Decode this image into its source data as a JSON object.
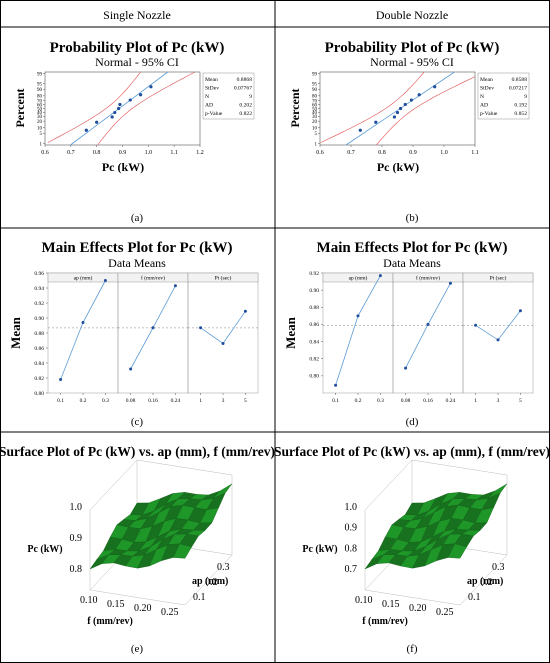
{
  "header": {
    "left": "Single Nozzle",
    "right": "Double Nozzle"
  },
  "panel_labels": [
    "(a)",
    "(b)",
    "(c)",
    "(d)",
    "(e)",
    "(f)"
  ],
  "chart_data": [
    {
      "panel": "(a)",
      "type": "scatter",
      "title": "Probability Plot of Pc (kW)",
      "subtitle": "Normal - 95% CI",
      "xlabel": "Pc (kW)",
      "ylabel": "Percent",
      "xlim": [
        0.6,
        1.2
      ],
      "x_ticks": [
        0.6,
        0.7,
        0.8,
        0.9,
        1.0,
        1.1,
        1.2
      ],
      "y_ticks": [
        1,
        5,
        10,
        20,
        30,
        40,
        50,
        60,
        70,
        80,
        90,
        95,
        99
      ],
      "stats": [
        {
          "label": "Mean",
          "value": "0.8868"
        },
        {
          "label": "StDev",
          "value": "0.07767"
        },
        {
          "label": "N",
          "value": "9"
        },
        {
          "label": "AD",
          "value": "0.202"
        },
        {
          "label": "p-Value",
          "value": "0.822"
        }
      ],
      "mean": 0.8868,
      "stdev": 0.07767,
      "points": [
        {
          "x": 0.76,
          "p": 7.4
        },
        {
          "x": 0.8,
          "p": 18.1
        },
        {
          "x": 0.86,
          "p": 28.7
        },
        {
          "x": 0.87,
          "p": 39.4
        },
        {
          "x": 0.885,
          "p": 50
        },
        {
          "x": 0.89,
          "p": 60.6
        },
        {
          "x": 0.93,
          "p": 71.3
        },
        {
          "x": 0.97,
          "p": 81.9
        },
        {
          "x": 1.01,
          "p": 92.6
        }
      ],
      "line_color": "#5b9bd5",
      "ci_color": "#e05050",
      "point_color": "#1f4e9c"
    },
    {
      "panel": "(b)",
      "type": "scatter",
      "title": "Probability Plot of Pc (kW)",
      "subtitle": "Normal - 95% CI",
      "xlabel": "Pc (kW)",
      "ylabel": "Percent",
      "xlim": [
        0.6,
        1.1
      ],
      "x_ticks": [
        0.6,
        0.7,
        0.8,
        0.9,
        1.0,
        1.1
      ],
      "y_ticks": [
        1,
        5,
        10,
        20,
        30,
        40,
        50,
        60,
        70,
        80,
        90,
        95,
        99
      ],
      "stats": [
        {
          "label": "Mean",
          "value": "0.8588"
        },
        {
          "label": "StDev",
          "value": "0.07217"
        },
        {
          "label": "N",
          "value": "9"
        },
        {
          "label": "AD",
          "value": "0.192"
        },
        {
          "label": "p-Value",
          "value": "0.852"
        }
      ],
      "mean": 0.8588,
      "stdev": 0.07217,
      "points": [
        {
          "x": 0.73,
          "p": 7.4
        },
        {
          "x": 0.78,
          "p": 18.1
        },
        {
          "x": 0.84,
          "p": 28.7
        },
        {
          "x": 0.85,
          "p": 39.4
        },
        {
          "x": 0.86,
          "p": 50
        },
        {
          "x": 0.875,
          "p": 60.6
        },
        {
          "x": 0.895,
          "p": 71.3
        },
        {
          "x": 0.92,
          "p": 81.9
        },
        {
          "x": 0.97,
          "p": 92.6
        }
      ],
      "line_color": "#5b9bd5",
      "ci_color": "#e05050",
      "point_color": "#1f4e9c"
    },
    {
      "panel": "(c)",
      "type": "line",
      "title": "Main Effects Plot for Pc (kW)",
      "subtitle": "Data Means",
      "ylabel": "Mean",
      "ylim": [
        0.8,
        0.96
      ],
      "y_ticks": [
        0.8,
        0.82,
        0.84,
        0.86,
        0.88,
        0.9,
        0.92,
        0.94,
        0.96
      ],
      "y_tick_labels": [
        "0.80",
        "0.82",
        "0.84",
        "0.86",
        "0.88",
        "0.90",
        "0.92",
        "0.94",
        "0.96"
      ],
      "grand_mean": 0.8868,
      "factors": [
        {
          "name": "ap (mm)",
          "levels": [
            "0.1",
            "0.2",
            "0.3"
          ],
          "means": [
            0.818,
            0.894,
            0.95
          ]
        },
        {
          "name": "f (mm/rev)",
          "levels": [
            "0.08",
            "0.16",
            "0.24"
          ],
          "means": [
            0.832,
            0.887,
            0.943
          ]
        },
        {
          "name": "Pt (sec)",
          "levels": [
            "1",
            "3",
            "5"
          ],
          "means": [
            0.887,
            0.866,
            0.909
          ]
        }
      ],
      "line_color": "#5b9bd5",
      "point_color": "#1f4e9c"
    },
    {
      "panel": "(d)",
      "type": "line",
      "title": "Main Effects Plot for Pc (kW)",
      "subtitle": "Data Means",
      "ylabel": "Mean",
      "ylim": [
        0.78,
        0.92
      ],
      "y_ticks": [
        0.8,
        0.82,
        0.84,
        0.86,
        0.88,
        0.9,
        0.92
      ],
      "y_tick_labels": [
        "0.80",
        "0.82",
        "0.84",
        "0.86",
        "0.88",
        "0.90",
        "0.92"
      ],
      "grand_mean": 0.8588,
      "factors": [
        {
          "name": "ap (mm)",
          "levels": [
            "0.1",
            "0.2",
            "0.3"
          ],
          "means": [
            0.789,
            0.87,
            0.917
          ]
        },
        {
          "name": "f (mm/rev)",
          "levels": [
            "0.08",
            "0.16",
            "0.24"
          ],
          "means": [
            0.809,
            0.86,
            0.908
          ]
        },
        {
          "name": "Pt (sec)",
          "levels": [
            "1",
            "3",
            "5"
          ],
          "means": [
            0.859,
            0.842,
            0.876
          ]
        }
      ],
      "line_color": "#5b9bd5",
      "point_color": "#1f4e9c"
    },
    {
      "panel": "(e)",
      "type": "surface",
      "title": "Surface Plot of Pc (kW) vs. ap (mm), f (mm/rev)",
      "zlabel": "Pc (kW)",
      "z_ticks": [
        "0.8",
        "0.9",
        "1.0"
      ],
      "ylabel": "ap (mm)",
      "y_ticks": [
        "0.1",
        "0.2",
        "0.3"
      ],
      "xlabel": "f (mm/rev)",
      "x_ticks": [
        "0.10",
        "0.15",
        "0.20",
        "0.25"
      ],
      "surface_color": "#2fa02f"
    },
    {
      "panel": "(f)",
      "type": "surface",
      "title": "Surface Plot of Pc (kW) vs. ap (mm), f (mm/rev)",
      "zlabel": "Pc (kW)",
      "z_ticks": [
        "0.7",
        "0.8",
        "0.9",
        "1.0"
      ],
      "ylabel": "ap (mm)",
      "y_ticks": [
        "0.1",
        "0.2",
        "0.3"
      ],
      "xlabel": "f (mm/rev)",
      "x_ticks": [
        "0.10",
        "0.15",
        "0.20",
        "0.25"
      ],
      "surface_color": "#2fa02f"
    }
  ]
}
